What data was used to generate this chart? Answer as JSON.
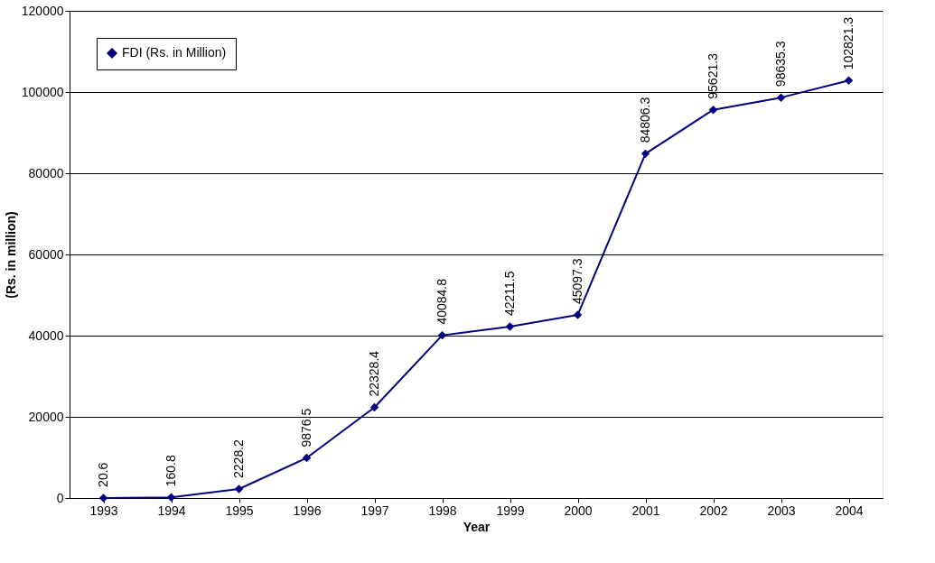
{
  "chart_data": {
    "type": "line",
    "xlabel": "Year",
    "ylabel": "(Rs. in million)",
    "categories": [
      "1993",
      "1994",
      "1995",
      "1996",
      "1997",
      "1998",
      "1999",
      "2000",
      "2001",
      "2002",
      "2003",
      "2004"
    ],
    "series": [
      {
        "name": "FDI (Rs. in Million)",
        "color": "#000080",
        "values": [
          20.6,
          160.8,
          2228.2,
          9876.5,
          22328.4,
          40084.8,
          42211.5,
          45097.3,
          84806.3,
          95621.3,
          98635.3,
          102821.3
        ]
      }
    ],
    "ylim": [
      0,
      120000
    ],
    "yticks": [
      0,
      20000,
      40000,
      60000,
      80000,
      100000,
      120000
    ],
    "grid": "y",
    "legend": "top left",
    "marker": "diamond",
    "line_style": "solid",
    "data_labels": true
  }
}
